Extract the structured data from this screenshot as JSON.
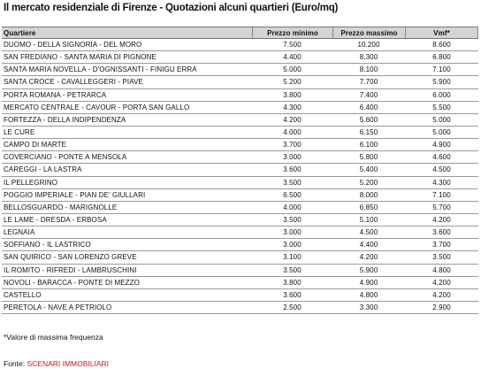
{
  "title": "Il mercato residenziale di Firenze - Quotazioni alcuni quartieri (Euro/mq)",
  "table": {
    "headers": [
      "Quartiere",
      "Prezzo minimo",
      "Prezzo massimo",
      "Vmf*"
    ],
    "rows": [
      [
        "DUOMO - DELLA SIGNORIA - DEL MORO",
        "7.500",
        "10.200",
        "8.600"
      ],
      [
        "SAN FREDIANO - SANTA MARIA DI PIGNONE",
        "4.400",
        "8.300",
        "6.800"
      ],
      [
        "SANTA MARIA NOVELLA - D'OGNISSANTI - FINIGU ERRA",
        "5.000",
        "8.100",
        "7.100"
      ],
      [
        "SANTA CROCE - CAVALLEGGERI - PIAVE",
        "5.200",
        "7.700",
        "5.900"
      ],
      [
        "PORTA ROMANA - PETRARCA",
        "3.800",
        "7.400",
        "6.000"
      ],
      [
        "MERCATO CENTRALE - CAVOUR - PORTA SAN GALLO",
        "4.300",
        "6.400",
        "5.500"
      ],
      [
        "FORTEZZA - DELLA INDIPENDENZA",
        "4.200",
        "5.600",
        "5.000"
      ],
      [
        "LE CURE",
        "4.000",
        "6.150",
        "5.000"
      ],
      [
        "CAMPO DI MARTE",
        "3.700",
        "6.100",
        "4.900"
      ],
      [
        "COVERCIANO - PONTE A MENSOLA",
        "3.000",
        "5.800",
        "4.600"
      ],
      [
        "CAREGGI - LA LASTRA",
        "3.600",
        "5.400",
        "4.500"
      ],
      [
        "IL PELLEGRINO",
        "3.500",
        "5.200",
        "4.300"
      ],
      [
        "POGGIO IMPERIALE - PIAN DE' GIULLARI",
        "6.500",
        "8.000",
        "7.100"
      ],
      [
        "BELLOSGUARDO - MARIGNOLLE",
        "4.000",
        "6.850",
        "5.700"
      ],
      [
        "LE LAME - DRESDA - ERBOSA",
        "3.500",
        "5.100",
        "4.200"
      ],
      [
        "LEGNAIA",
        "3.000",
        "4.500",
        "3.600"
      ],
      [
        "SOFFIANO - IL LASTRICO",
        "3.000",
        "4.400",
        "3.700"
      ],
      [
        "SAN QUIRICO - SAN LORENZO GREVE",
        "3.100",
        "4.200",
        "3.500"
      ],
      [
        "IL ROMITO - RIFREDI - LAMBRUSCHINI",
        "3.500",
        "5.900",
        "4.800"
      ],
      [
        "NOVOLI - BARACCA - PONTE DI MEZZO",
        "3.800",
        "4.900",
        "4.200"
      ],
      [
        "CASTELLO",
        "3.600",
        "4.800",
        "4.200"
      ],
      [
        "PERETOLA - NAVE A PETRIOLO",
        "2.500",
        "3.300",
        "2.900"
      ]
    ]
  },
  "footnote": "*Valore di massima frequenza",
  "source_label": "Fonte: ",
  "source_name": "SCENARI IMMOBILIARI",
  "colors": {
    "source": "#d01818",
    "header_bg": "#d4d4d4"
  }
}
